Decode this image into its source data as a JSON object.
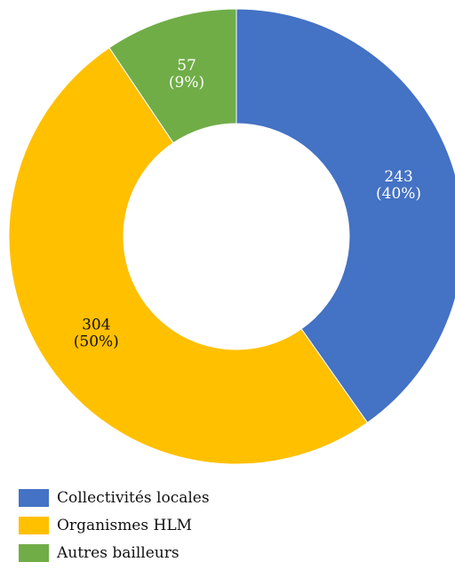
{
  "chart_data": {
    "type": "pie",
    "donut": true,
    "start_angle_deg": 0,
    "direction": "clockwise",
    "categories": [
      "Collectivités locales",
      "Organismes HLM",
      "Autres bailleurs"
    ],
    "values": [
      243,
      304,
      57
    ],
    "percent_labels": [
      "(40%)",
      "(50%)",
      "(9%)"
    ],
    "value_labels": [
      "243",
      "304",
      "57"
    ],
    "colors": [
      "#4472C4",
      "#FFC000",
      "#70AD47"
    ],
    "label_colors": [
      "#ffffff",
      "#111111",
      "#ffffff"
    ],
    "legend_position": "bottom-left"
  }
}
